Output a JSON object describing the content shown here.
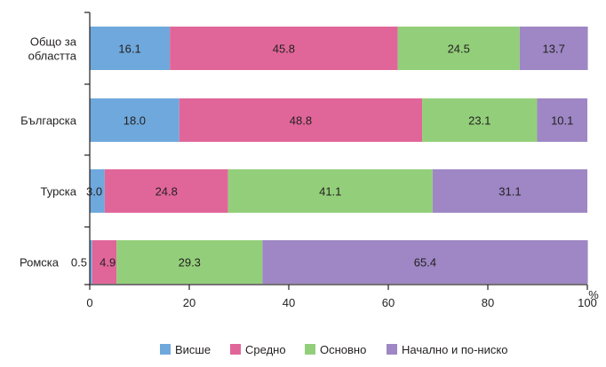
{
  "chart_data": {
    "type": "bar",
    "orientation": "horizontal",
    "stacked": true,
    "categories": [
      "Общо за областта",
      "Българска",
      "Турска",
      "Ромска"
    ],
    "category_lines": [
      [
        "Общо за",
        "областта"
      ],
      [
        "Българска"
      ],
      [
        "Турска"
      ],
      [
        "Ромска"
      ]
    ],
    "series": [
      {
        "name": "Висше",
        "color": "#6fa8dc",
        "values": [
          16.1,
          18.0,
          3.0,
          0.5
        ],
        "labels": [
          "16.1",
          "18.0",
          "3.0",
          "0.5"
        ]
      },
      {
        "name": "Средно",
        "color": "#e06699",
        "values": [
          45.8,
          48.8,
          24.8,
          4.9
        ],
        "labels": [
          "45.8",
          "48.8",
          "24.8",
          "4.9"
        ]
      },
      {
        "name": "Основно",
        "color": "#93cf7a",
        "values": [
          24.5,
          23.1,
          41.1,
          29.3
        ],
        "labels": [
          "24.5",
          "23.1",
          "41.1",
          "29.3"
        ]
      },
      {
        "name": "Начално и по-ниско",
        "color": "#9e87c4",
        "values": [
          13.7,
          10.1,
          31.1,
          65.4
        ],
        "labels": [
          "13.7",
          "10.1",
          "31.1",
          "65.4"
        ]
      }
    ],
    "x_ticks": [
      "0",
      "20",
      "40",
      "60",
      "80",
      "100"
    ],
    "xlim": [
      0,
      100
    ],
    "x_unit": "%",
    "grid": false,
    "legend": "bottom"
  }
}
